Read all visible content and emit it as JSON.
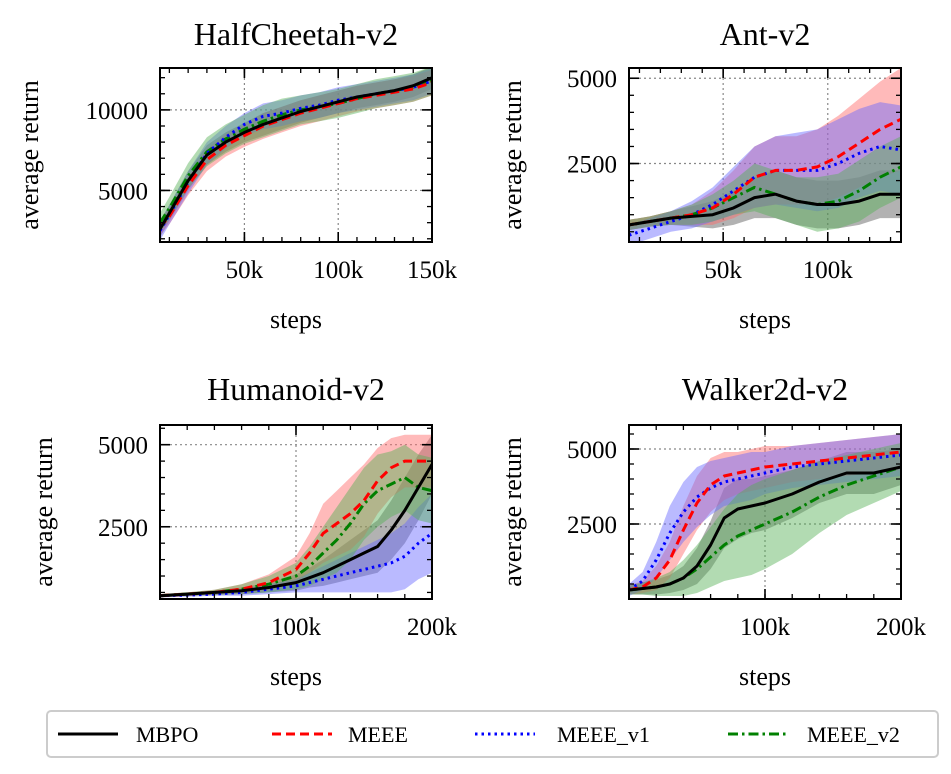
{
  "legend": {
    "entries": [
      {
        "name": "MBPO",
        "color": "#000000",
        "style": "solid"
      },
      {
        "name": "MEEE",
        "color": "#ff0000",
        "style": "dashed"
      },
      {
        "name": "MEEE_v1",
        "color": "#0000ff",
        "style": "dotted"
      },
      {
        "name": "MEEE_v2",
        "color": "#008000",
        "style": "dashdot"
      }
    ]
  },
  "band_colors": {
    "MBPO": "#555555",
    "MEEE": "#ff6666",
    "MEEE_v1": "#6666ff",
    "MEEE_v2": "#55b055"
  },
  "chart_data": [
    {
      "type": "line",
      "title": "HalfCheetah-v2",
      "xlabel": "steps",
      "ylabel": "average return",
      "xlim": [
        5000,
        150000
      ],
      "ylim": [
        1800,
        12600
      ],
      "xticks": [
        50000,
        100000,
        150000
      ],
      "xtick_labels": [
        "50k",
        "100k",
        "150k"
      ],
      "yticks": [
        5000,
        10000
      ],
      "ytick_labels": [
        "5000",
        "10000"
      ],
      "x": [
        5000,
        10000,
        20000,
        30000,
        40000,
        50000,
        60000,
        70000,
        80000,
        90000,
        100000,
        110000,
        120000,
        130000,
        140000,
        150000
      ],
      "series": [
        {
          "name": "MBPO",
          "values": [
            2600,
            3600,
            5600,
            7200,
            8000,
            8600,
            9100,
            9500,
            9900,
            10200,
            10500,
            10800,
            11000,
            11200,
            11500,
            12000
          ],
          "band": [
            500,
            500,
            600,
            600,
            600,
            600,
            700,
            700,
            700,
            700,
            700,
            700,
            700,
            700,
            700,
            700
          ]
        },
        {
          "name": "MEEE",
          "values": [
            2700,
            3400,
            5300,
            6900,
            7800,
            8400,
            9000,
            9400,
            9800,
            10100,
            10400,
            10700,
            10900,
            11100,
            11300,
            11700
          ],
          "band": [
            500,
            500,
            600,
            700,
            700,
            700,
            800,
            800,
            800,
            800,
            800,
            800,
            800,
            800,
            800,
            800
          ]
        },
        {
          "name": "MEEE_v1",
          "values": [
            2500,
            3500,
            5500,
            7300,
            8300,
            9100,
            9600,
            9800,
            10100,
            10300,
            10600,
            10800,
            11000,
            11200,
            11400,
            11800
          ],
          "band": [
            600,
            600,
            700,
            700,
            700,
            700,
            800,
            800,
            800,
            800,
            800,
            800,
            800,
            800,
            800,
            800
          ]
        },
        {
          "name": "MEEE_v2",
          "values": [
            3000,
            3900,
            5900,
            7400,
            8200,
            8800,
            9300,
            9700,
            10000,
            10200,
            10400,
            10700,
            11000,
            11200,
            11400,
            11800
          ],
          "band": [
            600,
            700,
            800,
            900,
            900,
            900,
            1000,
            1000,
            900,
            900,
            900,
            900,
            900,
            900,
            900,
            900
          ]
        }
      ]
    },
    {
      "type": "line",
      "title": "Ant-v2",
      "xlabel": "steps",
      "ylabel": "average return",
      "xlim": [
        5000,
        135000
      ],
      "ylim": [
        200,
        5300
      ],
      "xticks": [
        50000,
        100000
      ],
      "xtick_labels": [
        "50k",
        "100k"
      ],
      "yticks": [
        2500,
        5000
      ],
      "ytick_labels": [
        "2500",
        "5000"
      ],
      "x": [
        5000,
        15000,
        25000,
        35000,
        45000,
        55000,
        65000,
        75000,
        85000,
        95000,
        105000,
        115000,
        125000,
        135000
      ],
      "series": [
        {
          "name": "MBPO",
          "values": [
            700,
            800,
            900,
            950,
            1000,
            1200,
            1500,
            1600,
            1400,
            1300,
            1300,
            1400,
            1600,
            1600
          ],
          "band": [
            150,
            150,
            200,
            300,
            400,
            500,
            600,
            700,
            700,
            700,
            700,
            700,
            700,
            700
          ]
        },
        {
          "name": "MEEE",
          "values": [
            700,
            800,
            900,
            1000,
            1200,
            1600,
            2100,
            2300,
            2300,
            2400,
            2700,
            3100,
            3500,
            3800
          ],
          "band": [
            150,
            150,
            200,
            300,
            500,
            700,
            900,
            1000,
            1000,
            1100,
            1200,
            1300,
            1400,
            1500
          ]
        },
        {
          "name": "MEEE_v1",
          "values": [
            400,
            600,
            800,
            1000,
            1300,
            1700,
            2100,
            2300,
            2300,
            2300,
            2500,
            2800,
            3000,
            2900
          ],
          "band": [
            300,
            300,
            300,
            400,
            500,
            700,
            900,
            1000,
            1100,
            1200,
            1300,
            1300,
            1300,
            1300
          ]
        },
        {
          "name": "MEEE_v2",
          "values": [
            700,
            800,
            900,
            1000,
            1200,
            1500,
            1800,
            1600,
            1400,
            1300,
            1400,
            1700,
            2100,
            2400
          ],
          "band": [
            150,
            150,
            200,
            300,
            400,
            500,
            700,
            700,
            700,
            800,
            800,
            900,
            900,
            900
          ]
        }
      ]
    },
    {
      "type": "line",
      "title": "Humanoid-v2",
      "xlabel": "steps",
      "ylabel": "average return",
      "xlim": [
        0,
        200000
      ],
      "ylim": [
        300,
        5600
      ],
      "xticks": [
        100000,
        200000
      ],
      "xtick_labels": [
        "100k",
        "200k"
      ],
      "yticks": [
        2500,
        5000
      ],
      "ytick_labels": [
        "2500",
        "5000"
      ],
      "x": [
        0,
        20000,
        40000,
        60000,
        80000,
        100000,
        110000,
        120000,
        130000,
        140000,
        150000,
        160000,
        170000,
        180000,
        190000,
        200000
      ],
      "series": [
        {
          "name": "MBPO",
          "values": [
            400,
            450,
            500,
            550,
            650,
            800,
            950,
            1100,
            1300,
            1500,
            1700,
            1900,
            2400,
            3000,
            3700,
            4400
          ],
          "band": [
            50,
            50,
            50,
            100,
            150,
            250,
            300,
            400,
            500,
            600,
            700,
            800,
            900,
            1000,
            1000,
            900
          ]
        },
        {
          "name": "MEEE",
          "values": [
            400,
            450,
            500,
            600,
            800,
            1200,
            1700,
            2300,
            2600,
            2900,
            3300,
            3900,
            4300,
            4500,
            4500,
            4500
          ],
          "band": [
            50,
            50,
            80,
            150,
            250,
            400,
            600,
            900,
            1000,
            1100,
            1100,
            1000,
            900,
            800,
            800,
            800
          ]
        },
        {
          "name": "MEEE_v1",
          "values": [
            400,
            420,
            450,
            500,
            600,
            700,
            800,
            900,
            1000,
            1100,
            1200,
            1300,
            1400,
            1600,
            2000,
            2300
          ],
          "band": [
            50,
            50,
            50,
            100,
            150,
            200,
            300,
            400,
            500,
            600,
            700,
            800,
            900,
            1000,
            1100,
            1200
          ]
        },
        {
          "name": "MEEE_v2",
          "values": [
            400,
            450,
            500,
            600,
            750,
            1000,
            1300,
            1700,
            2100,
            2600,
            3200,
            3600,
            3800,
            4000,
            3700,
            3600
          ],
          "band": [
            50,
            50,
            80,
            150,
            250,
            400,
            600,
            800,
            1000,
            1100,
            1100,
            1100,
            1000,
            1000,
            1000,
            1000
          ]
        }
      ]
    },
    {
      "type": "line",
      "title": "Walker2d-v2",
      "xlabel": "steps",
      "ylabel": "average return",
      "xlim": [
        0,
        200000
      ],
      "ylim": [
        0,
        5800
      ],
      "xticks": [
        100000,
        200000
      ],
      "xtick_labels": [
        "100k",
        "200k"
      ],
      "yticks": [
        2500,
        5000
      ],
      "ytick_labels": [
        "2500",
        "5000"
      ],
      "x": [
        0,
        10000,
        20000,
        30000,
        40000,
        50000,
        60000,
        70000,
        80000,
        90000,
        100000,
        120000,
        140000,
        160000,
        180000,
        200000
      ],
      "series": [
        {
          "name": "MBPO",
          "values": [
            300,
            350,
            400,
            500,
            700,
            1100,
            1800,
            2700,
            3000,
            3100,
            3200,
            3500,
            3900,
            4200,
            4200,
            4400
          ],
          "band": [
            150,
            200,
            250,
            300,
            400,
            600,
            800,
            1000,
            1000,
            900,
            900,
            800,
            700,
            700,
            700,
            600
          ]
        },
        {
          "name": "MEEE",
          "values": [
            300,
            400,
            700,
            1300,
            2300,
            3200,
            3800,
            4100,
            4200,
            4300,
            4400,
            4500,
            4600,
            4700,
            4800,
            4900
          ],
          "band": [
            150,
            200,
            400,
            600,
            800,
            900,
            900,
            800,
            700,
            700,
            700,
            600,
            600,
            600,
            600,
            600
          ]
        },
        {
          "name": "MEEE_v1",
          "values": [
            300,
            600,
            1300,
            2200,
            2900,
            3400,
            3700,
            3900,
            4000,
            4100,
            4200,
            4400,
            4500,
            4600,
            4700,
            4800
          ],
          "band": [
            200,
            300,
            600,
            900,
            1000,
            1000,
            900,
            800,
            800,
            800,
            700,
            700,
            700,
            700,
            700,
            700
          ]
        },
        {
          "name": "MEEE_v2",
          "values": [
            300,
            350,
            400,
            500,
            700,
            1000,
            1400,
            1800,
            2100,
            2300,
            2500,
            2900,
            3400,
            3800,
            4100,
            4400
          ],
          "band": [
            150,
            200,
            300,
            400,
            600,
            800,
            1000,
            1200,
            1400,
            1500,
            1500,
            1400,
            1200,
            1000,
            900,
            800
          ]
        }
      ]
    }
  ]
}
